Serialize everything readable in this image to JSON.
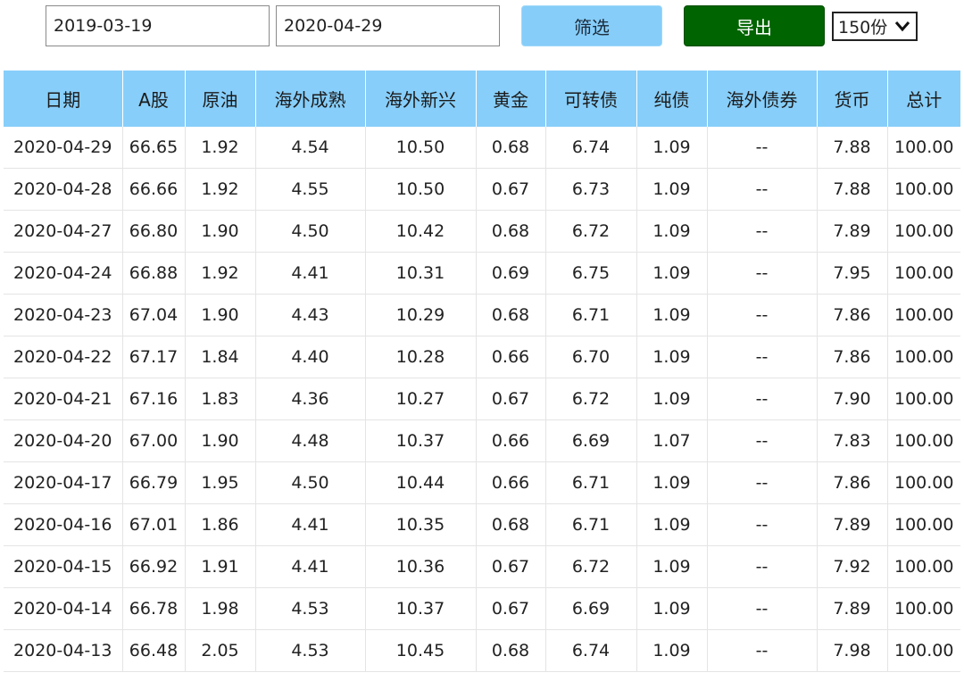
{
  "filters": {
    "start_date": "2019-03-19",
    "end_date": "2020-04-29",
    "filter_label": "筛选",
    "export_label": "导出",
    "count_value": "150份"
  },
  "table": {
    "columns": [
      "日期",
      "A股",
      "原油",
      "海外成熟",
      "海外新兴",
      "黄金",
      "可转债",
      "纯债",
      "海外债券",
      "货币",
      "总计"
    ],
    "rows": [
      [
        "2020-04-29",
        "66.65",
        "1.92",
        "4.54",
        "10.50",
        "0.68",
        "6.74",
        "1.09",
        "--",
        "7.88",
        "100.00"
      ],
      [
        "2020-04-28",
        "66.66",
        "1.92",
        "4.55",
        "10.50",
        "0.67",
        "6.73",
        "1.09",
        "--",
        "7.88",
        "100.00"
      ],
      [
        "2020-04-27",
        "66.80",
        "1.90",
        "4.50",
        "10.42",
        "0.68",
        "6.72",
        "1.09",
        "--",
        "7.89",
        "100.00"
      ],
      [
        "2020-04-24",
        "66.88",
        "1.92",
        "4.41",
        "10.31",
        "0.69",
        "6.75",
        "1.09",
        "--",
        "7.95",
        "100.00"
      ],
      [
        "2020-04-23",
        "67.04",
        "1.90",
        "4.43",
        "10.29",
        "0.68",
        "6.71",
        "1.09",
        "--",
        "7.86",
        "100.00"
      ],
      [
        "2020-04-22",
        "67.17",
        "1.84",
        "4.40",
        "10.28",
        "0.66",
        "6.70",
        "1.09",
        "--",
        "7.86",
        "100.00"
      ],
      [
        "2020-04-21",
        "67.16",
        "1.83",
        "4.36",
        "10.27",
        "0.67",
        "6.72",
        "1.09",
        "--",
        "7.90",
        "100.00"
      ],
      [
        "2020-04-20",
        "67.00",
        "1.90",
        "4.48",
        "10.37",
        "0.66",
        "6.69",
        "1.07",
        "--",
        "7.83",
        "100.00"
      ],
      [
        "2020-04-17",
        "66.79",
        "1.95",
        "4.50",
        "10.44",
        "0.66",
        "6.71",
        "1.09",
        "--",
        "7.86",
        "100.00"
      ],
      [
        "2020-04-16",
        "67.01",
        "1.86",
        "4.41",
        "10.35",
        "0.68",
        "6.71",
        "1.09",
        "--",
        "7.89",
        "100.00"
      ],
      [
        "2020-04-15",
        "66.92",
        "1.91",
        "4.41",
        "10.36",
        "0.67",
        "6.72",
        "1.09",
        "--",
        "7.92",
        "100.00"
      ],
      [
        "2020-04-14",
        "66.78",
        "1.98",
        "4.53",
        "10.37",
        "0.67",
        "6.69",
        "1.09",
        "--",
        "7.89",
        "100.00"
      ],
      [
        "2020-04-13",
        "66.48",
        "2.05",
        "4.53",
        "10.45",
        "0.68",
        "6.74",
        "1.09",
        "--",
        "7.98",
        "100.00"
      ]
    ]
  },
  "icons": {
    "select_arrow": "chevron-down-icon"
  }
}
